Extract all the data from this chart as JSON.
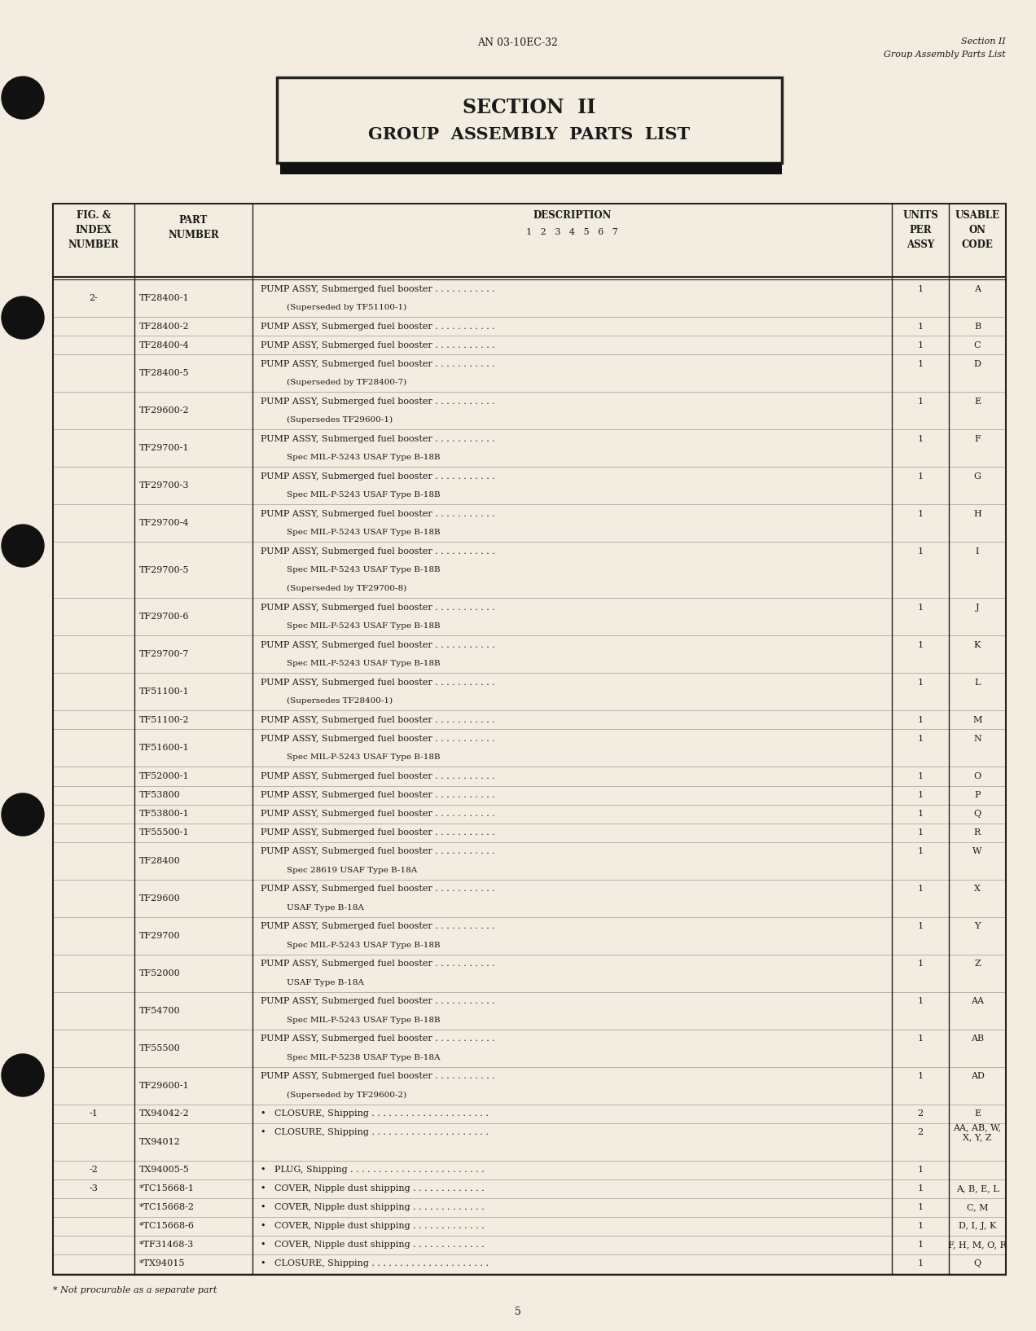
{
  "background_color": "#f2ede0",
  "page_number": "5",
  "header_left": "AN 03-10EC-32",
  "header_right_line1": "Section II",
  "header_right_line2": "Group Assembly Parts List",
  "title_box_line1": "SECTION  II",
  "title_box_line2": "GROUP  ASSEMBLY  PARTS  LIST",
  "rows": [
    {
      "fig": "2-",
      "part": "TF28400-1",
      "desc1": "PUMP ASSY, Submerged fuel booster . . . . . . . . . . .",
      "desc2": "(Superseded by TF51100-1)",
      "units": "1",
      "code": "A"
    },
    {
      "fig": "",
      "part": "TF28400-2",
      "desc1": "PUMP ASSY, Submerged fuel booster . . . . . . . . . . .",
      "desc2": "",
      "units": "1",
      "code": "B"
    },
    {
      "fig": "",
      "part": "TF28400-4",
      "desc1": "PUMP ASSY, Submerged fuel booster . . . . . . . . . . .",
      "desc2": "",
      "units": "1",
      "code": "C"
    },
    {
      "fig": "",
      "part": "TF28400-5",
      "desc1": "PUMP ASSY, Submerged fuel booster . . . . . . . . . . .",
      "desc2": "(Superseded by TF28400-7)",
      "units": "1",
      "code": "D"
    },
    {
      "fig": "",
      "part": "TF29600-2",
      "desc1": "PUMP ASSY, Submerged fuel booster . . . . . . . . . . .",
      "desc2": "(Supersedes TF29600-1)",
      "units": "1",
      "code": "E"
    },
    {
      "fig": "",
      "part": "TF29700-1",
      "desc1": "PUMP ASSY, Submerged fuel booster . . . . . . . . . . .",
      "desc2": "Spec MIL-P-5243 USAF Type B-18B",
      "units": "1",
      "code": "F"
    },
    {
      "fig": "",
      "part": "TF29700-3",
      "desc1": "PUMP ASSY, Submerged fuel booster . . . . . . . . . . .",
      "desc2": "Spec MIL-P-5243 USAF Type B-18B",
      "units": "1",
      "code": "G"
    },
    {
      "fig": "",
      "part": "TF29700-4",
      "desc1": "PUMP ASSY, Submerged fuel booster . . . . . . . . . . .",
      "desc2": "Spec MIL-P-5243 USAF Type B-18B",
      "units": "1",
      "code": "H"
    },
    {
      "fig": "",
      "part": "TF29700-5",
      "desc1": "PUMP ASSY, Submerged fuel booster . . . . . . . . . . .",
      "desc2": "Spec MIL-P-5243 USAF Type B-18B\n(Superseded by TF29700-8)",
      "units": "1",
      "code": "I"
    },
    {
      "fig": "",
      "part": "TF29700-6",
      "desc1": "PUMP ASSY, Submerged fuel booster . . . . . . . . . . .",
      "desc2": "Spec MIL-P-5243 USAF Type B-18B",
      "units": "1",
      "code": "J"
    },
    {
      "fig": "",
      "part": "TF29700-7",
      "desc1": "PUMP ASSY, Submerged fuel booster . . . . . . . . . . .",
      "desc2": "Spec MIL-P-5243 USAF Type B-18B",
      "units": "1",
      "code": "K"
    },
    {
      "fig": "",
      "part": "TF51100-1",
      "desc1": "PUMP ASSY, Submerged fuel booster . . . . . . . . . . .",
      "desc2": "(Supersedes TF28400-1)",
      "units": "1",
      "code": "L"
    },
    {
      "fig": "",
      "part": "TF51100-2",
      "desc1": "PUMP ASSY, Submerged fuel booster . . . . . . . . . . .",
      "desc2": "",
      "units": "1",
      "code": "M"
    },
    {
      "fig": "",
      "part": "TF51600-1",
      "desc1": "PUMP ASSY, Submerged fuel booster . . . . . . . . . . .",
      "desc2": "Spec MIL-P-5243 USAF Type B-18B",
      "units": "1",
      "code": "N"
    },
    {
      "fig": "",
      "part": "TF52000-1",
      "desc1": "PUMP ASSY, Submerged fuel booster . . . . . . . . . . .",
      "desc2": "",
      "units": "1",
      "code": "O"
    },
    {
      "fig": "",
      "part": "TF53800",
      "desc1": "PUMP ASSY, Submerged fuel booster . . . . . . . . . . .",
      "desc2": "",
      "units": "1",
      "code": "P"
    },
    {
      "fig": "",
      "part": "TF53800-1",
      "desc1": "PUMP ASSY, Submerged fuel booster . . . . . . . . . . .",
      "desc2": "",
      "units": "1",
      "code": "Q"
    },
    {
      "fig": "",
      "part": "TF55500-1",
      "desc1": "PUMP ASSY, Submerged fuel booster . . . . . . . . . . .",
      "desc2": "",
      "units": "1",
      "code": "R"
    },
    {
      "fig": "",
      "part": "TF28400",
      "desc1": "PUMP ASSY, Submerged fuel booster . . . . . . . . . . .",
      "desc2": "Spec 28619 USAF Type B-18A",
      "units": "1",
      "code": "W"
    },
    {
      "fig": "",
      "part": "TF29600",
      "desc1": "PUMP ASSY, Submerged fuel booster . . . . . . . . . . .",
      "desc2": "USAF Type B-18A",
      "units": "1",
      "code": "X"
    },
    {
      "fig": "",
      "part": "TF29700",
      "desc1": "PUMP ASSY, Submerged fuel booster . . . . . . . . . . .",
      "desc2": "Spec MIL-P-5243 USAF Type B-18B",
      "units": "1",
      "code": "Y"
    },
    {
      "fig": "",
      "part": "TF52000",
      "desc1": "PUMP ASSY, Submerged fuel booster . . . . . . . . . . .",
      "desc2": "USAF Type B-18A",
      "units": "1",
      "code": "Z"
    },
    {
      "fig": "",
      "part": "TF54700",
      "desc1": "PUMP ASSY, Submerged fuel booster . . . . . . . . . . .",
      "desc2": "Spec MIL-P-5243 USAF Type B-18B",
      "units": "1",
      "code": "AA"
    },
    {
      "fig": "",
      "part": "TF55500",
      "desc1": "PUMP ASSY, Submerged fuel booster . . . . . . . . . . .",
      "desc2": "Spec MIL-P-5238 USAF Type B-18A",
      "units": "1",
      "code": "AB"
    },
    {
      "fig": "",
      "part": "TF29600-1",
      "desc1": "PUMP ASSY, Submerged fuel booster . . . . . . . . . . .",
      "desc2": "(Superseded by TF29600-2)",
      "units": "1",
      "code": "AD"
    },
    {
      "fig": "-1",
      "part": "TX94042-2",
      "desc1": "•   CLOSURE, Shipping . . . . . . . . . . . . . . . . . . . . .",
      "desc2": "",
      "units": "2",
      "code": "E"
    },
    {
      "fig": "",
      "part": "TX94012",
      "desc1": "•   CLOSURE, Shipping . . . . . . . . . . . . . . . . . . . . .",
      "desc2": "",
      "units": "2",
      "code": "AA, AB, W,\nX, Y, Z"
    },
    {
      "fig": "-2",
      "part": "TX94005-5",
      "desc1": "•   PLUG, Shipping . . . . . . . . . . . . . . . . . . . . . . . .",
      "desc2": "",
      "units": "1",
      "code": ""
    },
    {
      "fig": "-3",
      "part": "*TC15668-1",
      "desc1": "•   COVER, Nipple dust shipping . . . . . . . . . . . . .",
      "desc2": "",
      "units": "1",
      "code": "A, B, E, L"
    },
    {
      "fig": "",
      "part": "*TC15668-2",
      "desc1": "•   COVER, Nipple dust shipping . . . . . . . . . . . . .",
      "desc2": "",
      "units": "1",
      "code": "C, M"
    },
    {
      "fig": "",
      "part": "*TC15668-6",
      "desc1": "•   COVER, Nipple dust shipping . . . . . . . . . . . . .",
      "desc2": "",
      "units": "1",
      "code": "D, I, J, K"
    },
    {
      "fig": "",
      "part": "*TF31468-3",
      "desc1": "•   COVER, Nipple dust shipping . . . . . . . . . . . . .",
      "desc2": "",
      "units": "1",
      "code": "F, H, M, O, R"
    },
    {
      "fig": "",
      "part": "*TX94015",
      "desc1": "•   CLOSURE, Shipping . . . . . . . . . . . . . . . . . . . . .",
      "desc2": "",
      "units": "1",
      "code": "Q"
    }
  ],
  "footnote": "* Not procurable as a separate part",
  "text_color": "#1a1a1a",
  "line_color": "#222222"
}
